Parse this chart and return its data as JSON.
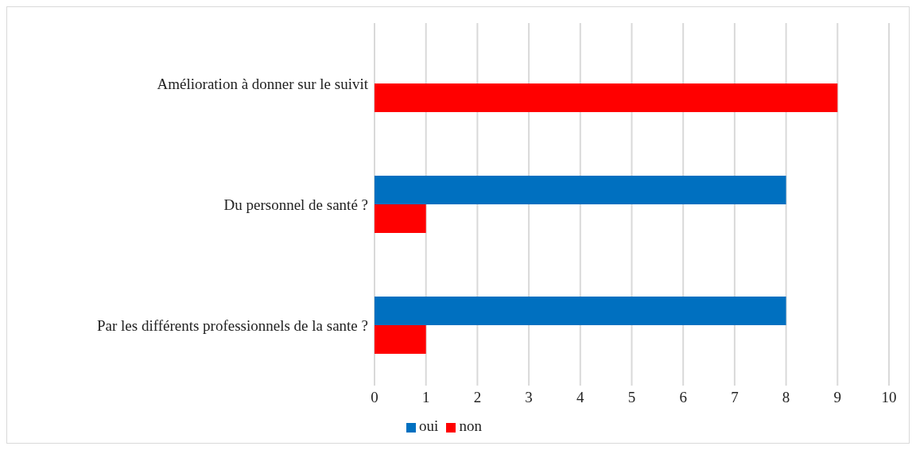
{
  "chart_data": {
    "type": "bar",
    "orientation": "horizontal",
    "categories": [
      "Amélioration à donner sur le suivit",
      "Du personnel de santé ?",
      "Par les différents professionnels de la sante ?"
    ],
    "series": [
      {
        "name": "oui",
        "color": "#0070c0",
        "values": [
          0,
          8,
          8
        ]
      },
      {
        "name": "non",
        "color": "#ff0000",
        "values": [
          9,
          1,
          1
        ]
      }
    ],
    "xlim": [
      0,
      10
    ],
    "xticks": [
      0,
      1,
      2,
      3,
      4,
      5,
      6,
      7,
      8,
      9,
      10
    ],
    "grid": "x",
    "legend": "bottom"
  }
}
